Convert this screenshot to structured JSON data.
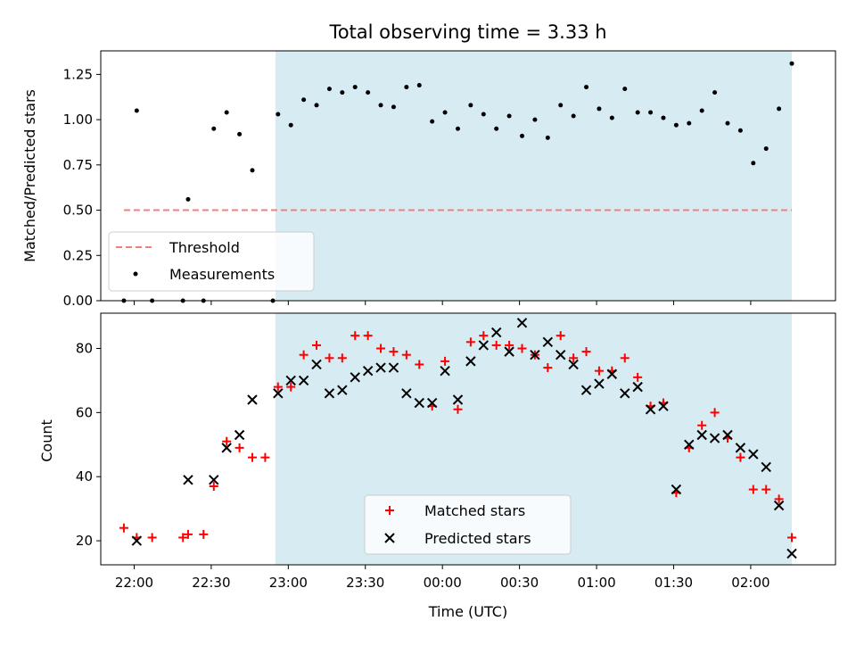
{
  "chart_data": [
    {
      "type": "scatter",
      "title": "Total observing time = 3.33 h",
      "xlabel": "",
      "ylabel": "Matched/Predicted stars",
      "ylim": [
        0,
        1.38
      ],
      "yticks": [
        "0.00",
        "0.25",
        "0.50",
        "0.75",
        "1.00",
        "1.25"
      ],
      "ytick_values": [
        0,
        0.25,
        0.5,
        0.75,
        1.0,
        1.25
      ],
      "x_range": [
        "21:47",
        "02:33"
      ],
      "observing_window": [
        "22:55",
        "02:16"
      ],
      "threshold": {
        "name": "Threshold",
        "value": 0.5,
        "from": "21:56",
        "to": "02:16",
        "color": "#f08080"
      },
      "legend_position": "lower-left",
      "series": [
        {
          "name": "Measurements",
          "color": "#000000",
          "x": [
            "21:56",
            "22:01",
            "22:07",
            "22:19",
            "22:21",
            "22:27",
            "22:31",
            "22:36",
            "22:41",
            "22:46",
            "22:54",
            "22:56",
            "23:01",
            "23:06",
            "23:11",
            "23:16",
            "23:21",
            "23:26",
            "23:31",
            "23:36",
            "23:41",
            "23:46",
            "23:51",
            "23:56",
            "24:01",
            "24:06",
            "24:11",
            "24:16",
            "24:21",
            "24:26",
            "24:31",
            "24:36",
            "24:41",
            "24:46",
            "24:51",
            "24:56",
            "25:01",
            "25:06",
            "25:11",
            "25:16",
            "25:21",
            "25:26",
            "25:31",
            "25:36",
            "25:41",
            "25:46",
            "25:51",
            "25:56",
            "26:01",
            "26:06",
            "26:11",
            "26:16"
          ],
          "y": [
            0.0,
            1.05,
            0.0,
            0.0,
            0.56,
            0.0,
            0.95,
            1.04,
            0.92,
            0.72,
            0.0,
            1.03,
            0.97,
            1.11,
            1.08,
            1.17,
            1.15,
            1.18,
            1.15,
            1.08,
            1.07,
            1.18,
            1.19,
            0.99,
            1.04,
            0.95,
            1.08,
            1.03,
            0.95,
            1.02,
            0.91,
            1.0,
            0.9,
            1.08,
            1.02,
            1.18,
            1.06,
            1.01,
            1.17,
            1.04,
            1.04,
            1.01,
            0.97,
            0.98,
            1.05,
            1.15,
            0.98,
            0.94,
            0.76,
            0.84,
            1.06,
            1.31
          ]
        }
      ]
    },
    {
      "type": "scatter",
      "title": "",
      "xlabel": "Time (UTC)",
      "ylabel": "Count",
      "ylim": [
        12.5,
        91
      ],
      "yticks": [
        "20",
        "40",
        "60",
        "80"
      ],
      "ytick_values": [
        20,
        40,
        60,
        80
      ],
      "x_range": [
        "21:47",
        "02:33"
      ],
      "xticks": [
        "22:00",
        "22:30",
        "23:00",
        "23:30",
        "00:00",
        "00:30",
        "01:00",
        "01:30",
        "02:00"
      ],
      "xtick_values": [
        "22:00",
        "22:30",
        "23:00",
        "23:30",
        "24:00",
        "24:30",
        "25:00",
        "25:30",
        "26:00"
      ],
      "observing_window": [
        "22:55",
        "02:16"
      ],
      "legend_position": "lower-center",
      "series": [
        {
          "name": "Matched stars",
          "marker": "+",
          "color": "#ff0000",
          "x": [
            "21:56",
            "22:01",
            "22:07",
            "22:19",
            "22:21",
            "22:27",
            "22:31",
            "22:36",
            "22:41",
            "22:46",
            "22:51",
            "22:56",
            "23:01",
            "23:06",
            "23:11",
            "23:16",
            "23:21",
            "23:26",
            "23:31",
            "23:36",
            "23:41",
            "23:46",
            "23:51",
            "23:56",
            "24:01",
            "24:06",
            "24:11",
            "24:16",
            "24:21",
            "24:26",
            "24:31",
            "24:36",
            "24:41",
            "24:46",
            "24:51",
            "24:56",
            "25:01",
            "25:06",
            "25:11",
            "25:16",
            "25:21",
            "25:26",
            "25:31",
            "25:36",
            "25:41",
            "25:46",
            "25:51",
            "25:56",
            "26:01",
            "26:06",
            "26:11",
            "26:16"
          ],
          "y": [
            24,
            21,
            21,
            21,
            22,
            22,
            37,
            51,
            49,
            46,
            46,
            68,
            68,
            78,
            81,
            77,
            77,
            84,
            84,
            80,
            79,
            78,
            75,
            62,
            76,
            61,
            82,
            84,
            81,
            81,
            80,
            78,
            74,
            84,
            77,
            79,
            73,
            73,
            77,
            71,
            62,
            63,
            35,
            49,
            56,
            60,
            52,
            46,
            36,
            36,
            33,
            21
          ]
        },
        {
          "name": "Predicted stars",
          "marker": "x",
          "color": "#000000",
          "x": [
            "22:01",
            "22:21",
            "22:31",
            "22:36",
            "22:41",
            "22:46",
            "22:56",
            "23:01",
            "23:06",
            "23:11",
            "23:16",
            "23:21",
            "23:26",
            "23:31",
            "23:36",
            "23:41",
            "23:46",
            "23:51",
            "23:56",
            "24:01",
            "24:06",
            "24:11",
            "24:16",
            "24:21",
            "24:26",
            "24:31",
            "24:36",
            "24:41",
            "24:46",
            "24:51",
            "24:56",
            "25:01",
            "25:06",
            "25:11",
            "25:16",
            "25:21",
            "25:26",
            "25:31",
            "25:36",
            "25:41",
            "25:46",
            "25:51",
            "25:56",
            "26:01",
            "26:06",
            "26:11",
            "26:16"
          ],
          "y": [
            20,
            39,
            39,
            49,
            53,
            64,
            66,
            70,
            70,
            75,
            66,
            67,
            71,
            73,
            74,
            74,
            66,
            63,
            63,
            73,
            64,
            76,
            81,
            85,
            79,
            88,
            78,
            82,
            78,
            75,
            67,
            69,
            72,
            66,
            68,
            61,
            62,
            36,
            50,
            53,
            52,
            53,
            49,
            47,
            43,
            31,
            16
          ]
        }
      ]
    }
  ]
}
